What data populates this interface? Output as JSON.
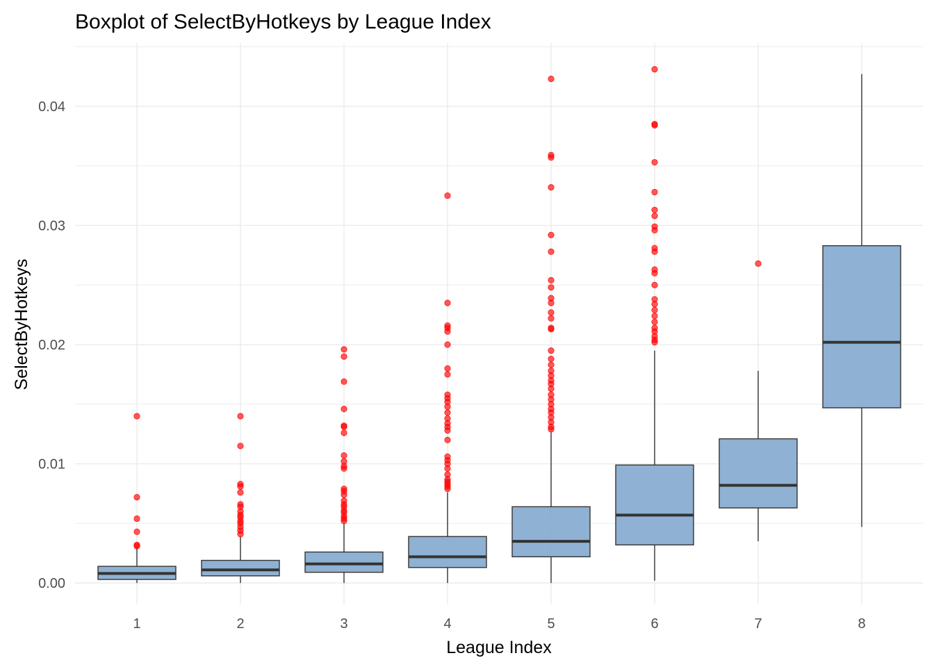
{
  "chart_data": {
    "type": "boxplot",
    "title": "Boxplot of SelectByHotkeys by League Index",
    "xlabel": "League Index",
    "ylabel": "SelectByHotkeys",
    "categories": [
      "1",
      "2",
      "3",
      "4",
      "5",
      "6",
      "7",
      "8"
    ],
    "ylim": [
      -0.0018,
      0.0453
    ],
    "y_ticks": [
      0.0,
      0.01,
      0.02,
      0.03,
      0.04
    ],
    "y_tick_labels": [
      "0.00",
      "0.01",
      "0.02",
      "0.03",
      "0.04"
    ],
    "grid": true,
    "legend": "none",
    "colors": {
      "box_fill": "#86aacf",
      "box_stroke": "#333333",
      "outlier": "#ff0000",
      "grid": "#ebebeb"
    },
    "boxes": [
      {
        "category": "1",
        "whisker_low": 0.0,
        "q1": 0.0003,
        "median": 0.0008,
        "q3": 0.0014,
        "whisker_high": 0.003,
        "outliers": [
          0.014,
          0.0072,
          0.0054,
          0.0043,
          0.0032,
          0.0031
        ]
      },
      {
        "category": "2",
        "whisker_low": 0.0,
        "q1": 0.0006,
        "median": 0.0011,
        "q3": 0.0019,
        "whisker_high": 0.0039,
        "outliers": [
          0.014,
          0.0115,
          0.0083,
          0.0081,
          0.0076,
          0.0066,
          0.0064,
          0.006,
          0.0057,
          0.0055,
          0.0052,
          0.005,
          0.0047,
          0.0044,
          0.0041
        ]
      },
      {
        "category": "3",
        "whisker_low": 0.0,
        "q1": 0.0009,
        "median": 0.0016,
        "q3": 0.0026,
        "whisker_high": 0.005,
        "outliers": [
          0.0196,
          0.019,
          0.0169,
          0.0146,
          0.0132,
          0.0131,
          0.0126,
          0.0107,
          0.0102,
          0.0098,
          0.0096,
          0.0079,
          0.0077,
          0.0074,
          0.0069,
          0.0066,
          0.0064,
          0.0061,
          0.0059,
          0.0056,
          0.0054,
          0.0052
        ]
      },
      {
        "category": "4",
        "whisker_low": 0.0,
        "q1": 0.0013,
        "median": 0.0022,
        "q3": 0.0039,
        "whisker_high": 0.0076,
        "outliers": [
          0.0325,
          0.0235,
          0.0216,
          0.0214,
          0.0211,
          0.02,
          0.018,
          0.0175,
          0.0158,
          0.0155,
          0.0152,
          0.0148,
          0.0143,
          0.0138,
          0.0134,
          0.0131,
          0.0128,
          0.012,
          0.0106,
          0.0103,
          0.01,
          0.0096,
          0.0091,
          0.0087,
          0.0085,
          0.0083,
          0.0081,
          0.0079
        ]
      },
      {
        "category": "5",
        "whisker_low": 0.0,
        "q1": 0.0022,
        "median": 0.0035,
        "q3": 0.0064,
        "whisker_high": 0.0127,
        "outliers": [
          0.0423,
          0.0359,
          0.0357,
          0.0332,
          0.0292,
          0.0278,
          0.0254,
          0.0248,
          0.0239,
          0.0235,
          0.0227,
          0.0222,
          0.0214,
          0.0213,
          0.0195,
          0.0188,
          0.0183,
          0.0178,
          0.0174,
          0.017,
          0.0167,
          0.0163,
          0.0158,
          0.0154,
          0.015,
          0.0146,
          0.0143,
          0.0139,
          0.0135,
          0.0131,
          0.0129
        ]
      },
      {
        "category": "6",
        "whisker_low": 0.0002,
        "q1": 0.0032,
        "median": 0.0057,
        "q3": 0.0099,
        "whisker_high": 0.0195,
        "outliers": [
          0.0431,
          0.0385,
          0.0384,
          0.0353,
          0.0328,
          0.0313,
          0.0308,
          0.0299,
          0.0296,
          0.0281,
          0.0278,
          0.0263,
          0.026,
          0.025,
          0.0238,
          0.0234,
          0.0229,
          0.0224,
          0.0219,
          0.0214,
          0.0211,
          0.0207,
          0.0204,
          0.0202
        ]
      },
      {
        "category": "7",
        "whisker_low": 0.0035,
        "q1": 0.0063,
        "median": 0.0082,
        "q3": 0.0121,
        "whisker_high": 0.0178,
        "outliers": [
          0.0268
        ]
      },
      {
        "category": "8",
        "whisker_low": 0.0047,
        "q1": 0.0147,
        "median": 0.0202,
        "q3": 0.0283,
        "whisker_high": 0.0427,
        "outliers": []
      }
    ]
  }
}
